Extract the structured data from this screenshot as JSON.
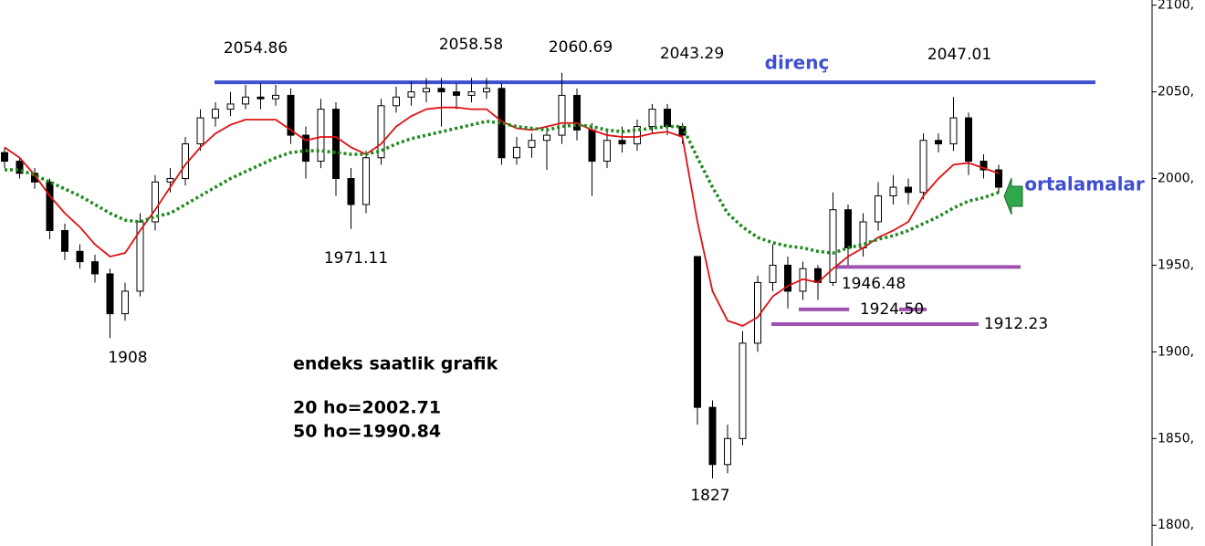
{
  "chart_data": {
    "type": "candlestick",
    "ohlc": [
      [
        2015,
        2018,
        2006,
        2010
      ],
      [
        2010,
        2012,
        2000,
        2003
      ],
      [
        2003,
        2006,
        1994,
        1998
      ],
      [
        1998,
        2000,
        1965,
        1970
      ],
      [
        1970,
        1974,
        1953,
        1958
      ],
      [
        1958,
        1962,
        1948,
        1952
      ],
      [
        1952,
        1956,
        1940,
        1945
      ],
      [
        1945,
        1948,
        1908,
        1922
      ],
      [
        1922,
        1940,
        1918,
        1935
      ],
      [
        1935,
        1980,
        1932,
        1975
      ],
      [
        1975,
        2002,
        1970,
        1998
      ],
      [
        1998,
        2006,
        1992,
        2000
      ],
      [
        2000,
        2024,
        1996,
        2020
      ],
      [
        2020,
        2040,
        2016,
        2035
      ],
      [
        2035,
        2044,
        2030,
        2040
      ],
      [
        2040,
        2050,
        2036,
        2043
      ],
      [
        2043,
        2054,
        2040,
        2047
      ],
      [
        2047,
        2055,
        2040,
        2046
      ],
      [
        2046,
        2054,
        2042,
        2048
      ],
      [
        2048,
        2052,
        2020,
        2025
      ],
      [
        2025,
        2030,
        2000,
        2010
      ],
      [
        2010,
        2046,
        2006,
        2040
      ],
      [
        2040,
        2044,
        1990,
        2000
      ],
      [
        2000,
        2006,
        1971,
        1985
      ],
      [
        1985,
        2016,
        1980,
        2012
      ],
      [
        2012,
        2046,
        2008,
        2042
      ],
      [
        2042,
        2053,
        2038,
        2047
      ],
      [
        2047,
        2056,
        2042,
        2050
      ],
      [
        2050,
        2058,
        2044,
        2052
      ],
      [
        2052,
        2058,
        2030,
        2050
      ],
      [
        2050,
        2055,
        2040,
        2048
      ],
      [
        2048,
        2058,
        2044,
        2050
      ],
      [
        2050,
        2058,
        2046,
        2052
      ],
      [
        2052,
        2055,
        2008,
        2012
      ],
      [
        2012,
        2024,
        2008,
        2018
      ],
      [
        2018,
        2026,
        2012,
        2022
      ],
      [
        2022,
        2030,
        2005,
        2025
      ],
      [
        2025,
        2061,
        2020,
        2048
      ],
      [
        2048,
        2052,
        2022,
        2028
      ],
      [
        2028,
        2032,
        1990,
        2010
      ],
      [
        2010,
        2028,
        2006,
        2022
      ],
      [
        2022,
        2030,
        2015,
        2020
      ],
      [
        2020,
        2034,
        2016,
        2030
      ],
      [
        2030,
        2043,
        2026,
        2040
      ],
      [
        2040,
        2043,
        2025,
        2030
      ],
      [
        2030,
        2032,
        2020,
        2025
      ],
      [
        1955,
        1955,
        1858,
        1868
      ],
      [
        1868,
        1872,
        1827,
        1835
      ],
      [
        1835,
        1858,
        1830,
        1850
      ],
      [
        1850,
        1912,
        1846,
        1905
      ],
      [
        1905,
        1944,
        1900,
        1940
      ],
      [
        1940,
        1962,
        1935,
        1950
      ],
      [
        1950,
        1955,
        1925,
        1935
      ],
      [
        1935,
        1952,
        1930,
        1948
      ],
      [
        1948,
        1950,
        1930,
        1940
      ],
      [
        1940,
        1992,
        1938,
        1982
      ],
      [
        1982,
        1985,
        1950,
        1960
      ],
      [
        1960,
        1980,
        1955,
        1975
      ],
      [
        1975,
        1998,
        1970,
        1990
      ],
      [
        1990,
        2002,
        1985,
        1995
      ],
      [
        1995,
        2000,
        1985,
        1992
      ],
      [
        1992,
        2026,
        1988,
        2022
      ],
      [
        2022,
        2026,
        2015,
        2020
      ],
      [
        2020,
        2047,
        2016,
        2035
      ],
      [
        2035,
        2038,
        2002,
        2010
      ],
      [
        2010,
        2014,
        2000,
        2005
      ],
      [
        2005,
        2008,
        1992,
        1995
      ]
    ],
    "series": [
      {
        "color": "#e01010",
        "style": "solid",
        "values": [
          2018,
          2012,
          2002,
          1990,
          1980,
          1972,
          1962,
          1955,
          1957,
          1970,
          1982,
          1995,
          2008,
          2018,
          2026,
          2031,
          2034,
          2034,
          2034,
          2028,
          2022,
          2024,
          2024,
          2018,
          2014,
          2020,
          2030,
          2036,
          2040,
          2041,
          2041,
          2040,
          2040,
          2033,
          2029,
          2028,
          2030,
          2032,
          2032,
          2028,
          2025,
          2024,
          2024,
          2026,
          2027,
          2024,
          1975,
          1935,
          1918,
          1915,
          1920,
          1932,
          1938,
          1942,
          1940,
          1948,
          1955,
          1960,
          1966,
          1970,
          1975,
          1990,
          2000,
          2008,
          2009,
          2006,
          2003
        ]
      },
      {
        "color": "#1e8a1e",
        "style": "dotted",
        "values": [
          2005,
          2005,
          2002,
          1998,
          1994,
          1990,
          1985,
          1980,
          1976,
          1975,
          1978,
          1980,
          1985,
          1990,
          1995,
          2000,
          2004,
          2008,
          2012,
          2015,
          2016,
          2016,
          2015,
          2014,
          2014,
          2016,
          2020,
          2023,
          2025,
          2027,
          2029,
          2031,
          2033,
          2032,
          2030,
          2029,
          2028,
          2030,
          2031,
          2030,
          2028,
          2027,
          2028,
          2029,
          2030,
          2030,
          2012,
          1995,
          1980,
          1972,
          1966,
          1963,
          1961,
          1960,
          1958,
          1957,
          1960,
          1962,
          1965,
          1967,
          1970,
          1974,
          1978,
          1983,
          1987,
          1989,
          1992
        ]
      }
    ],
    "levels": [
      {
        "value": 2055.5,
        "color": "#3f4fd0"
      },
      {
        "value": 1949,
        "color": "#a050b0"
      },
      {
        "value": 1924.5,
        "color": "#a050b0"
      },
      {
        "value": 1916,
        "color": "#a050b0"
      }
    ],
    "annotations": [
      "2054.86",
      "2058.58",
      "2060.69",
      "2043.29",
      "direnç",
      "2047.01",
      "1971.11",
      "1908",
      "1827",
      "1946.48",
      "1924.50",
      "1912.23",
      "ortalamalar",
      "endeks saatlik grafik",
      "20 ho=2002.71",
      "50 ho=1990.84"
    ],
    "ylim": [
      1788,
      2103
    ],
    "yticks": [
      {
        "value": 1800,
        "label": "1800,"
      },
      {
        "value": 1850,
        "label": "1850,"
      },
      {
        "value": 1900,
        "label": "1900,"
      },
      {
        "value": 1950,
        "label": "1950,"
      },
      {
        "value": 2000,
        "label": "2000,"
      },
      {
        "value": 2050,
        "label": "2050,"
      },
      {
        "value": 2100,
        "label": "2100,"
      }
    ]
  }
}
